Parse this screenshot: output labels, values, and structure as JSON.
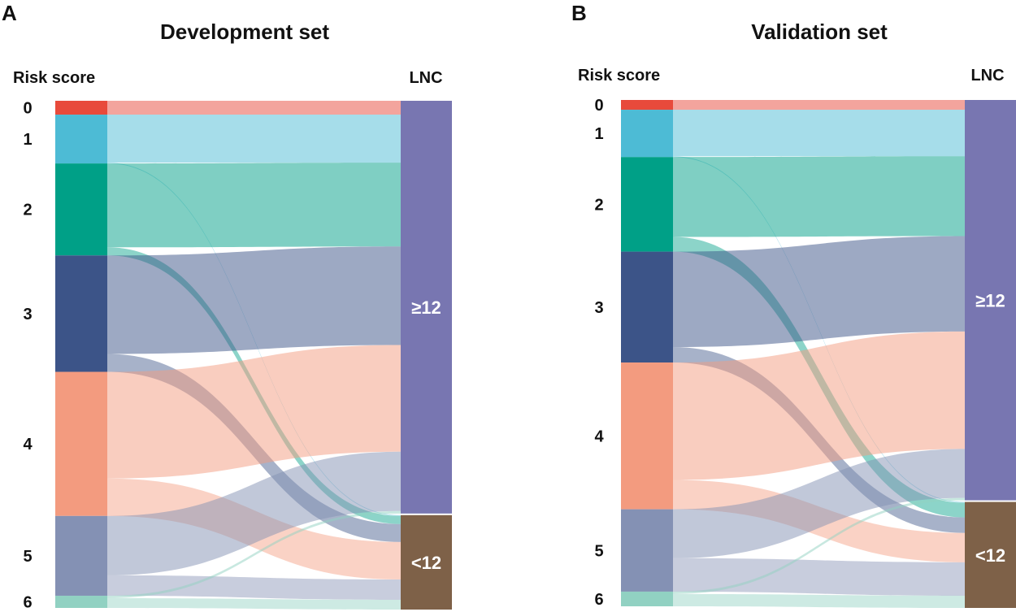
{
  "chart_data": [
    {
      "type": "sankey",
      "panel": "A",
      "title": "Development set",
      "left_header": "Risk score",
      "right_header": "LNC",
      "left_nodes": [
        {
          "label": "0",
          "color": "#E84A3B"
        },
        {
          "label": "1",
          "color": "#4DBBD5"
        },
        {
          "label": "2",
          "color": "#00A087"
        },
        {
          "label": "3",
          "color": "#3C5488"
        },
        {
          "label": "4",
          "color": "#F39B7F"
        },
        {
          "label": "5",
          "color": "#8491B4"
        },
        {
          "label": "6",
          "color": "#91D1C2"
        }
      ],
      "right_nodes": [
        {
          "label": "≥12",
          "color": "#7876B1"
        },
        {
          "label": "<12",
          "color": "#7E6148"
        }
      ],
      "flows": [
        {
          "score": "0",
          "ge12": 17,
          "lt12": 0
        },
        {
          "score": "1",
          "ge12": 59,
          "lt12": 1
        },
        {
          "score": "2",
          "ge12": 103,
          "lt12": 10
        },
        {
          "score": "3",
          "ge12": 121,
          "lt12": 22
        },
        {
          "score": "4",
          "ge12": 131,
          "lt12": 46
        },
        {
          "score": "5",
          "ge12": 73,
          "lt12": 25
        },
        {
          "score": "6",
          "ge12": 3,
          "lt12": 12
        }
      ]
    },
    {
      "type": "sankey",
      "panel": "B",
      "title": "Validation set",
      "left_header": "Risk score",
      "right_header": "LNC",
      "left_nodes": [
        {
          "label": "0",
          "color": "#E84A3B"
        },
        {
          "label": "1",
          "color": "#4DBBD5"
        },
        {
          "label": "2",
          "color": "#00A087"
        },
        {
          "label": "3",
          "color": "#3C5488"
        },
        {
          "label": "4",
          "color": "#F39B7F"
        },
        {
          "label": "5",
          "color": "#8491B4"
        },
        {
          "label": "6",
          "color": "#91D1C2"
        }
      ],
      "right_nodes": [
        {
          "label": "≥12",
          "color": "#7876B1"
        },
        {
          "label": "<12",
          "color": "#7E6148"
        }
      ],
      "flows": [
        {
          "score": "0",
          "ge12": 12,
          "lt12": 0
        },
        {
          "score": "1",
          "ge12": 57,
          "lt12": 1
        },
        {
          "score": "2",
          "ge12": 98,
          "lt12": 18
        },
        {
          "score": "3",
          "ge12": 117,
          "lt12": 19
        },
        {
          "score": "4",
          "ge12": 144,
          "lt12": 36
        },
        {
          "score": "5",
          "ge12": 60,
          "lt12": 41
        },
        {
          "score": "6",
          "ge12": 3,
          "lt12": 15
        }
      ]
    }
  ]
}
